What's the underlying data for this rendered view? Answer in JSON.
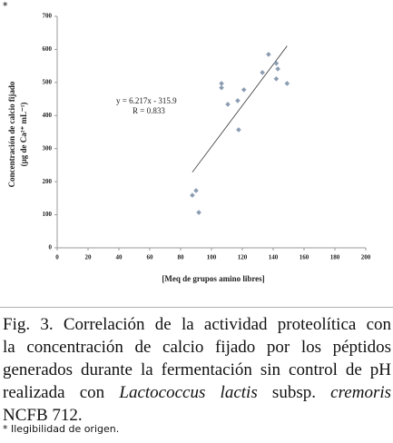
{
  "note_mark": "*",
  "chart_data": {
    "type": "scatter",
    "x": [
      87.6,
      90,
      91.8,
      106.5,
      106.5,
      110.6,
      117,
      117.6,
      121,
      133,
      137,
      142,
      143,
      142,
      149
    ],
    "values": [
      159,
      173,
      107,
      497,
      484,
      434,
      445,
      357,
      478,
      530,
      585,
      558,
      541,
      511,
      497
    ],
    "color": "#8c9db3",
    "xlim": [
      0,
      200
    ],
    "xticks": [
      0,
      20,
      40,
      60,
      80,
      100,
      120,
      140,
      160,
      180,
      200
    ],
    "ylim": [
      0,
      700
    ],
    "yticks": [
      0,
      100,
      200,
      300,
      400,
      500,
      600,
      700
    ],
    "grid": false,
    "xlabel": "[Meq de grupos amino libres]",
    "ylabel": [
      "Concentración de calcio fijado",
      "(µg de Ca²⁺ mL⁻¹)"
    ],
    "trendline": {
      "slope": 6.217,
      "intercept": -315.9,
      "label": "y = 6.217x - 315.9",
      "r_label": "R = 0.833"
    }
  },
  "caption": [
    [
      {
        "text": "Fig. 3. Correlación de la actividad proteolítica con"
      }
    ],
    [
      {
        "text": "la concentración de calcio fijado por los péptidos"
      }
    ],
    [
      {
        "text": "generados durante la fermentación sin control de pH"
      }
    ],
    [
      {
        "text": "realizada con "
      },
      {
        "text": "Lactococcus lactis",
        "italic": true
      },
      {
        "text": " subsp. "
      },
      {
        "text": "cremoris",
        "italic": true
      }
    ],
    [
      {
        "text": "NCFB 712."
      }
    ]
  ],
  "footnote": "* Ilegibilidad de origen."
}
